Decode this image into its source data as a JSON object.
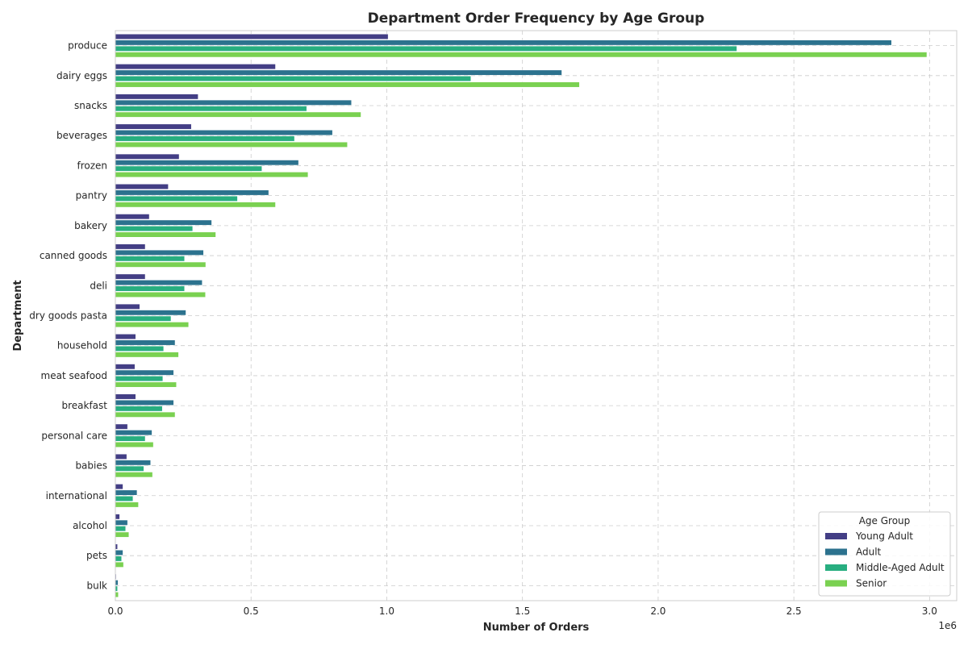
{
  "chart_data": {
    "type": "bar",
    "orientation": "horizontal",
    "title": "Department Order Frequency by Age Group",
    "xlabel": "Number of Orders",
    "ylabel": "Department",
    "x_offset_label": "1e6",
    "xlim": [
      0,
      3.1
    ],
    "x_ticks": [
      0.0,
      0.5,
      1.0,
      1.5,
      2.0,
      2.5,
      3.0
    ],
    "x_tick_labels": [
      "0.0",
      "0.5",
      "1.0",
      "1.5",
      "2.0",
      "2.5",
      "3.0"
    ],
    "grid": true,
    "legend": {
      "title": "Age Group",
      "position": "bottom-right"
    },
    "categories": [
      "produce",
      "dairy eggs",
      "snacks",
      "beverages",
      "frozen",
      "pantry",
      "bakery",
      "canned goods",
      "deli",
      "dry goods pasta",
      "household",
      "meat seafood",
      "breakfast",
      "personal care",
      "babies",
      "international",
      "alcohol",
      "pets",
      "bulk"
    ],
    "series": [
      {
        "name": "Young Adult",
        "color": "#433e85",
        "values": [
          1.005,
          0.59,
          0.305,
          0.28,
          0.235,
          0.195,
          0.125,
          0.11,
          0.11,
          0.09,
          0.075,
          0.072,
          0.075,
          0.045,
          0.042,
          0.028,
          0.016,
          0.008,
          0.003
        ]
      },
      {
        "name": "Adult",
        "color": "#2c728e",
        "values": [
          2.86,
          1.645,
          0.87,
          0.8,
          0.675,
          0.565,
          0.355,
          0.325,
          0.32,
          0.26,
          0.22,
          0.215,
          0.215,
          0.135,
          0.13,
          0.08,
          0.045,
          0.028,
          0.01
        ]
      },
      {
        "name": "Middle-Aged Adult",
        "color": "#28ae80",
        "values": [
          2.29,
          1.31,
          0.705,
          0.66,
          0.54,
          0.45,
          0.285,
          0.255,
          0.255,
          0.205,
          0.178,
          0.175,
          0.173,
          0.11,
          0.105,
          0.065,
          0.038,
          0.023,
          0.008
        ]
      },
      {
        "name": "Senior",
        "color": "#7ad151",
        "values": [
          2.99,
          1.71,
          0.905,
          0.855,
          0.71,
          0.59,
          0.37,
          0.333,
          0.332,
          0.27,
          0.233,
          0.225,
          0.22,
          0.14,
          0.137,
          0.085,
          0.05,
          0.03,
          0.011
        ]
      }
    ]
  }
}
